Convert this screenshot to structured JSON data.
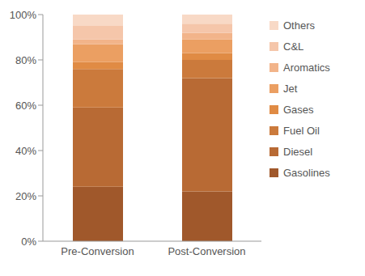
{
  "chart_data": {
    "type": "bar",
    "stacked": true,
    "legend": "right",
    "grid": false,
    "categories": [
      "Pre-Conversion",
      "Post-Conversion"
    ],
    "series": [
      {
        "name": "Gasolines",
        "color": "#a0582b",
        "values": [
          24,
          22
        ]
      },
      {
        "name": "Diesel",
        "color": "#b86a34",
        "values": [
          35,
          50
        ]
      },
      {
        "name": "Fuel Oil",
        "color": "#cb7a3c",
        "values": [
          17,
          8
        ]
      },
      {
        "name": "Gases",
        "color": "#e08b44",
        "values": [
          3,
          3
        ]
      },
      {
        "name": "Jet",
        "color": "#eb9f62",
        "values": [
          8,
          6
        ]
      },
      {
        "name": "Aromatics",
        "color": "#f2b48a",
        "values": [
          2,
          3
        ]
      },
      {
        "name": "C&L",
        "color": "#f5c6aa",
        "values": [
          6,
          4
        ]
      },
      {
        "name": "Others",
        "color": "#f8d9c6",
        "values": [
          5,
          4
        ]
      }
    ],
    "ylim": [
      0,
      100
    ],
    "yticks": [
      {
        "value": 0,
        "label": "0%"
      },
      {
        "value": 20,
        "label": "20%"
      },
      {
        "value": 40,
        "label": "40%"
      },
      {
        "value": 60,
        "label": "60%"
      },
      {
        "value": 80,
        "label": "80%"
      },
      {
        "value": 100,
        "label": "100%"
      }
    ]
  }
}
